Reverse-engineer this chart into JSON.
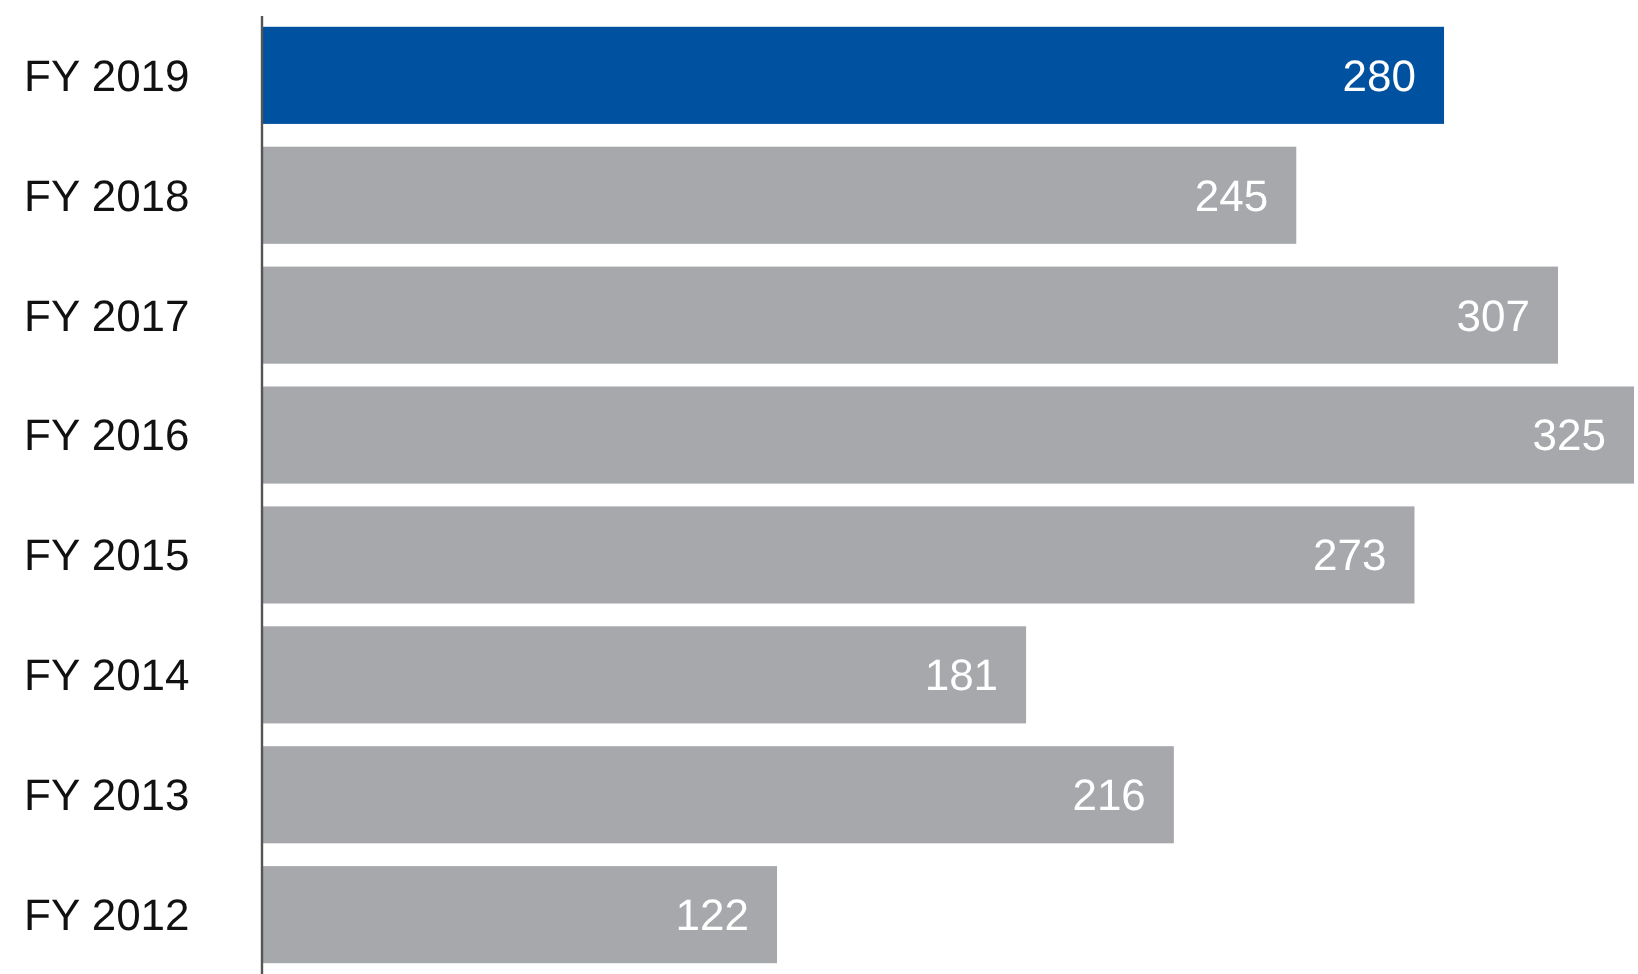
{
  "chart_data": {
    "type": "bar",
    "orientation": "horizontal",
    "categories": [
      "FY 2019",
      "FY 2018",
      "FY 2017",
      "FY 2016",
      "FY 2015",
      "FY 2014",
      "FY 2013",
      "FY 2012"
    ],
    "values": [
      280,
      245,
      307,
      325,
      273,
      181,
      216,
      122
    ],
    "colors": [
      "#0052a0",
      "#a7a8ab",
      "#a7a8ab",
      "#a7a8ab",
      "#a7a8ab",
      "#a7a8ab",
      "#a7a8ab",
      "#a7a8ab"
    ],
    "data_labels": true
  }
}
